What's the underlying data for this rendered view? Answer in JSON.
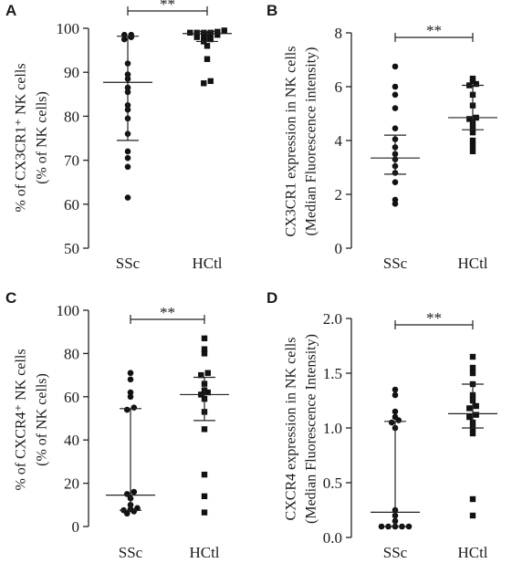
{
  "chart_data": [
    {
      "panel": "A",
      "type": "scatter",
      "ylabel_line1": "% of CX3CR1⁺ NK cells",
      "ylabel_line2": "(% of NK cells)",
      "categories": [
        "SSc",
        "HCtl"
      ],
      "ylim": [
        50,
        100
      ],
      "yticks": [
        50,
        60,
        70,
        80,
        90,
        100
      ],
      "significance": "**",
      "series": [
        {
          "values": [
            61.5,
            68.5,
            70.5,
            72,
            76,
            79.5,
            81.5,
            82.5,
            85.5,
            86.5,
            88.5,
            89.5,
            92,
            97.5,
            98,
            98.5,
            98.5
          ],
          "median": 87.7,
          "q1": 74.5,
          "q3": 98.2
        },
        {
          "values": [
            87.5,
            88,
            93,
            96,
            97,
            97.5,
            98,
            98,
            98.5,
            98.5,
            99,
            99,
            99,
            99,
            99.2,
            99.5
          ],
          "median": 98.8,
          "q1": 97,
          "q3": 99.3
        }
      ]
    },
    {
      "panel": "B",
      "type": "scatter",
      "ylabel_line1": "CX3CR1 expression in NK cells",
      "ylabel_line2": "(Median Fluorescence intensity)",
      "categories": [
        "SSc",
        "HCtl"
      ],
      "ylim": [
        0,
        8
      ],
      "yticks": [
        0,
        2,
        4,
        6,
        8
      ],
      "significance": "**",
      "series": [
        {
          "values": [
            1.65,
            1.8,
            2.45,
            2.8,
            3.05,
            3.3,
            3.5,
            3.75,
            4.05,
            4.45,
            5.2,
            5.7,
            6.0,
            6.75
          ],
          "median": 3.35,
          "q1": 2.75,
          "q3": 4.2
        },
        {
          "values": [
            3.6,
            3.8,
            4.0,
            4.3,
            4.45,
            4.65,
            4.8,
            4.85,
            5.3,
            5.7,
            6.05,
            6.1,
            6.2,
            6.3
          ],
          "median": 4.85,
          "q1": 4.4,
          "q3": 6.05
        }
      ]
    },
    {
      "panel": "C",
      "type": "scatter",
      "ylabel_line1": "% of CXCR4⁺ NK cells",
      "ylabel_line2": "(% of NK cells)",
      "categories": [
        "SSc",
        "HCtl"
      ],
      "ylim": [
        0,
        100
      ],
      "yticks": [
        0,
        20,
        40,
        60,
        80,
        100
      ],
      "significance": "**",
      "series": [
        {
          "values": [
            6,
            7,
            7.5,
            8,
            8.5,
            10,
            13,
            15,
            16,
            54,
            55,
            60,
            62,
            68,
            71
          ],
          "median": 14.5,
          "q1": 7.5,
          "q3": 54.5
        },
        {
          "values": [
            6.5,
            14,
            24,
            45,
            53,
            59,
            61,
            62,
            63,
            66,
            70,
            71,
            80,
            82,
            87
          ],
          "median": 61,
          "q1": 49,
          "q3": 69
        }
      ]
    },
    {
      "panel": "D",
      "type": "scatter",
      "ylabel_line1": "CXCR4 expression in NK cells",
      "ylabel_line2": "(Median Fluorescence Intensity)",
      "categories": [
        "SSc",
        "HCtl"
      ],
      "ylim": [
        0,
        2.0
      ],
      "yticks": [
        0,
        0.5,
        1.0,
        1.5,
        2.0
      ],
      "ytick_labels": [
        "0.0",
        "0.5",
        "1.0",
        "1.5",
        "2.0"
      ],
      "significance": "**",
      "series": [
        {
          "values": [
            0.1,
            0.1,
            0.1,
            0.1,
            0.1,
            0.15,
            0.2,
            0.25,
            1.0,
            1.05,
            1.07,
            1.1,
            1.15,
            1.3,
            1.35
          ],
          "median": 0.23,
          "q1": 0.1,
          "q3": 1.06
        },
        {
          "values": [
            0.2,
            0.35,
            0.95,
            1.0,
            1.05,
            1.1,
            1.12,
            1.18,
            1.2,
            1.25,
            1.3,
            1.4,
            1.5,
            1.55,
            1.65
          ],
          "median": 1.13,
          "q1": 1.0,
          "q3": 1.4
        }
      ]
    }
  ]
}
